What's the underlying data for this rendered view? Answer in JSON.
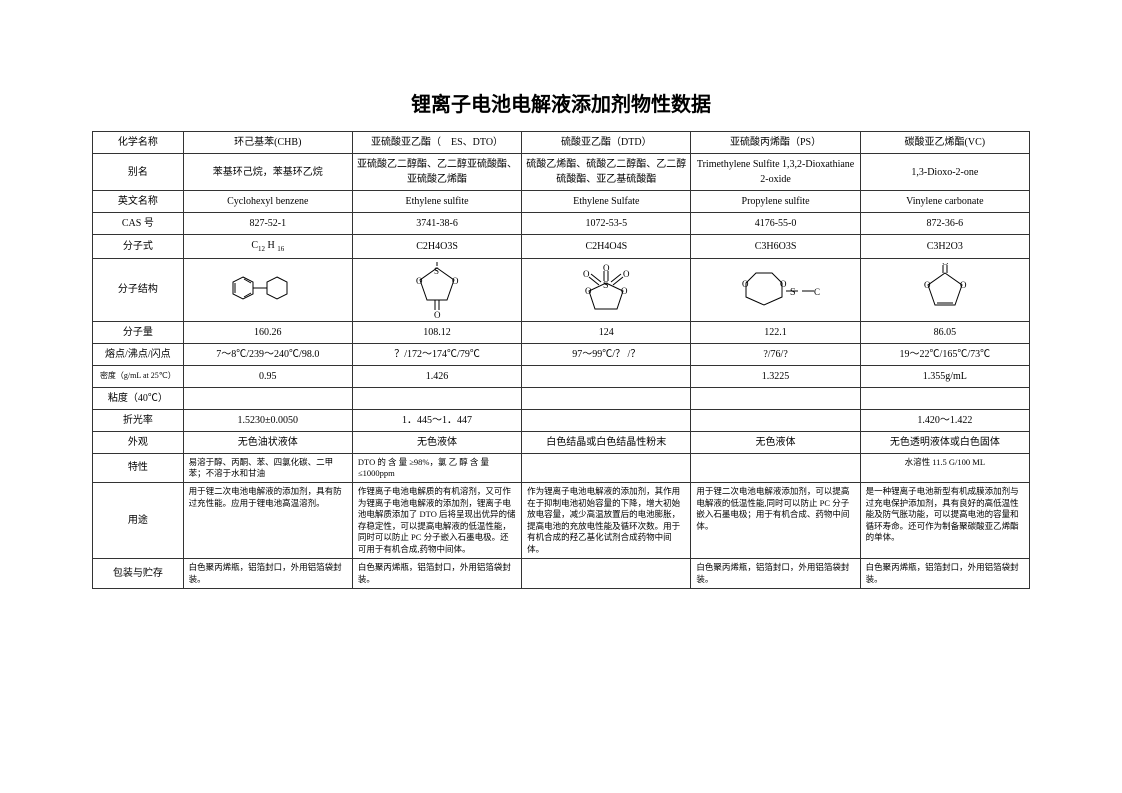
{
  "title": "锂离子电池电解液添加剂物性数据",
  "row_labels": {
    "chem_name": "化学名称",
    "alias": "别名",
    "en_name": "英文名称",
    "cas": "CAS 号",
    "formula": "分子式",
    "structure": "分子结构",
    "mw": "分子量",
    "mp_bp_fp": "熔点/沸点/闪点",
    "density": "密度（g/mL at 25℃）",
    "viscosity": "粘度（40℃）",
    "refractive": "折光率",
    "appearance": "外观",
    "properties": "特性",
    "usage": "用途",
    "packaging": "包装与贮存"
  },
  "cols": [
    {
      "chem_name": "环己基苯(CHB)",
      "alias": "苯基环己烷，苯基环乙烷",
      "en_name": "Cyclohexyl benzene",
      "cas": "827-52-1",
      "formula_html": "C<span class='sub'>12</span> H <span class='sub'>16</span>",
      "mw": "160.26",
      "mp_bp_fp": "7～8℃/239～240℃/98.0",
      "density": "0.95",
      "refractive": "1.5230±0.0050",
      "appearance": "无色油状液体",
      "properties": "易溶于醇、丙酮、苯、四氯化碳、二甲苯；不溶于水和甘油",
      "usage": "用于锂二次电池电解液的添加剂，具有防过充性能。应用于锂电池高温溶剂。",
      "packaging": "白色聚丙烯瓶，铝箔封口，外用铝箔袋封装。"
    },
    {
      "chem_name": "亚硫酸亚乙酯（　ES、DTO）",
      "alias": "亚硫酸乙二醇酯、乙二醇亚硫酸酯、亚硫酸乙烯酯",
      "en_name": "Ethylene sulfite",
      "cas": "3741-38-6",
      "formula": "C2H4O3S",
      "mw": "108.12",
      "mp_bp_fp": "？/172～174℃/79℃",
      "density": "1.426",
      "refractive": "1．445～1．447",
      "appearance": "无色液体",
      "properties": "DTO 的 含 量 ≥98%，氯 乙 醇 含 量≤1000ppm",
      "usage": "作锂离子电池电解质的有机溶剂，又可作为锂离子电池电解液的添加剂，锂离子电池电解质添加了 DTO 后将呈现出优异的储存稳定性，可以提高电解液的低温性能，同时可以防止 PC 分子嵌入石墨电极。还可用于有机合成,药物中间体。",
      "packaging": "白色聚丙烯瓶，铝箔封口，外用铝箔袋封装。"
    },
    {
      "chem_name": "硫酸亚乙酯（DTD）",
      "alias": "硫酸乙烯酯、硫酸乙二醇酯、乙二醇硫酸酯、亚乙基硫酸酯",
      "en_name": "Ethylene Sulfate",
      "cas": "1072-53-5",
      "formula": "C2H4O4S",
      "mw": "124",
      "mp_bp_fp": "97～99℃/？ /？",
      "density": "",
      "refractive": "",
      "appearance": "白色结晶或白色结晶性粉末",
      "properties": "",
      "usage": "作为锂离子电池电解液的添加剂，其作用在于抑制电池初始容量的下降，增大初始放电容量，减少高温放置后的电池膨胀，提高电池的充放电性能及循环次数。用于有机合成的羟乙基化试剂合成药物中间体。",
      "packaging": ""
    },
    {
      "chem_name": "亚硫酸丙烯酯（PS）",
      "alias": "Trimethylene Sulfite 1,3,2-Dioxathiane 2-oxide",
      "en_name": "Propylene sulfite",
      "cas": "4176-55-0",
      "formula": "C3H6O3S",
      "mw": "122.1",
      "mp_bp_fp": "?/76/?",
      "density": "1.3225",
      "refractive": "",
      "appearance": "无色液体",
      "properties": "",
      "usage": "用于锂二次电池电解液添加剂，可以提高电解液的低温性能,同时可以防止 PC 分子嵌入石墨电极；用于有机合成、药物中间体。",
      "packaging": "白色聚丙烯瓶，铝箔封口，外用铝箔袋封装。"
    },
    {
      "chem_name": "碳酸亚乙烯酯(VC)",
      "alias": "1,3-Dioxo-2-one",
      "en_name": "Vinylene carbonate",
      "cas": "872-36-6",
      "formula": "C3H2O3",
      "mw": "86.05",
      "mp_bp_fp": "19～22℃/165℃/73℃",
      "density": "1.355g/mL",
      "refractive": "1.420～1.422",
      "appearance": "无色透明液体或白色固体",
      "properties": "水溶性 11.5 G/100 ML",
      "usage": "是一种锂离子电池新型有机成膜添加剂与过充电保护添加剂，具有良好的高低温性能及防气胀功能，可以提高电池的容量和循环寿命。还可作为制备聚碳酸亚乙烯酯的单体。",
      "packaging": "白色聚丙烯瓶，铝箔封口，外用铝箔袋封装。"
    }
  ],
  "style": {
    "background_color": "#ffffff",
    "border_color": "#333333",
    "title_fontsize": 20,
    "body_fontsize": 10,
    "small_fontsize": 8.5
  }
}
